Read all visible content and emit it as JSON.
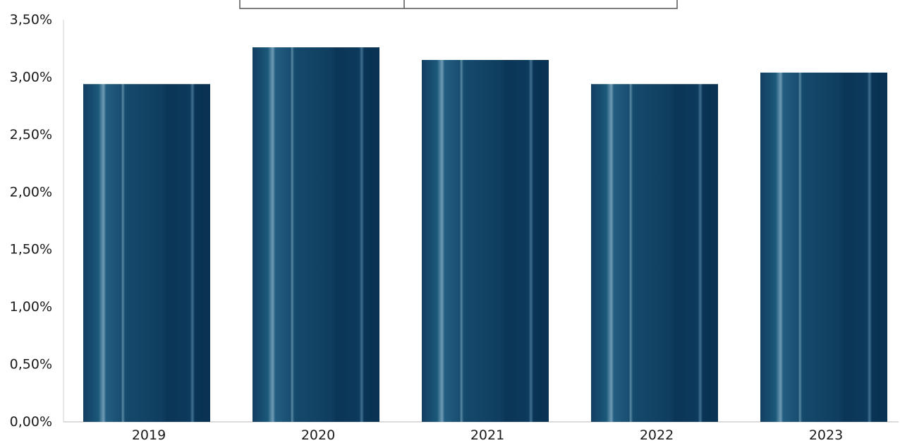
{
  "chart_data": {
    "type": "bar",
    "categories": [
      "2019",
      "2020",
      "2021",
      "2022",
      "2023"
    ],
    "values": [
      2.94,
      3.26,
      3.15,
      2.94,
      3.04
    ],
    "unit": "%",
    "ylim": [
      0,
      3.5
    ],
    "yticks": [
      "0,00%",
      "0,50%",
      "1,00%",
      "1,50%",
      "2,00%",
      "2,50%",
      "3,00%",
      "3,50%"
    ],
    "title": "",
    "xlabel": "",
    "ylabel": "",
    "grid": false,
    "legend": "none",
    "bar_color": "#0d3b5e",
    "bar_highlight_color": "#7fa6bd"
  }
}
